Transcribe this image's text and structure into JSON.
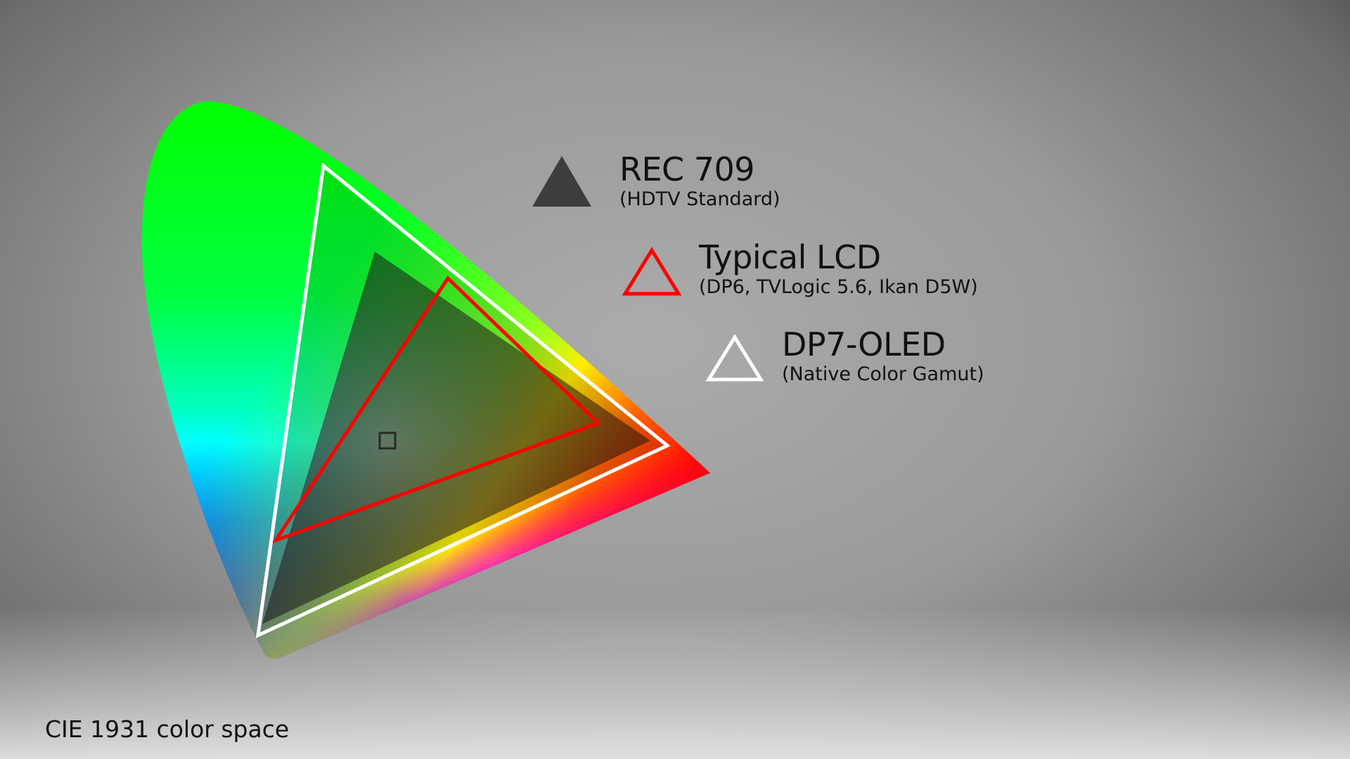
{
  "diagram": {
    "footer": "CIE 1931 color space",
    "legend": [
      {
        "title": "REC 709",
        "subtitle": "(HDTV Standard)",
        "marker": "filled-triangle",
        "color": "#3d3d3d"
      },
      {
        "title": "Typical LCD",
        "subtitle": "(DP6, TVLogic 5.6, Ikan D5W)",
        "marker": "outline-triangle",
        "color": "#ff0000"
      },
      {
        "title": "DP7-OLED",
        "subtitle": "(Native Color Gamut)",
        "marker": "outline-triangle",
        "color": "#ffffff"
      }
    ],
    "white_point_marker": "square"
  }
}
